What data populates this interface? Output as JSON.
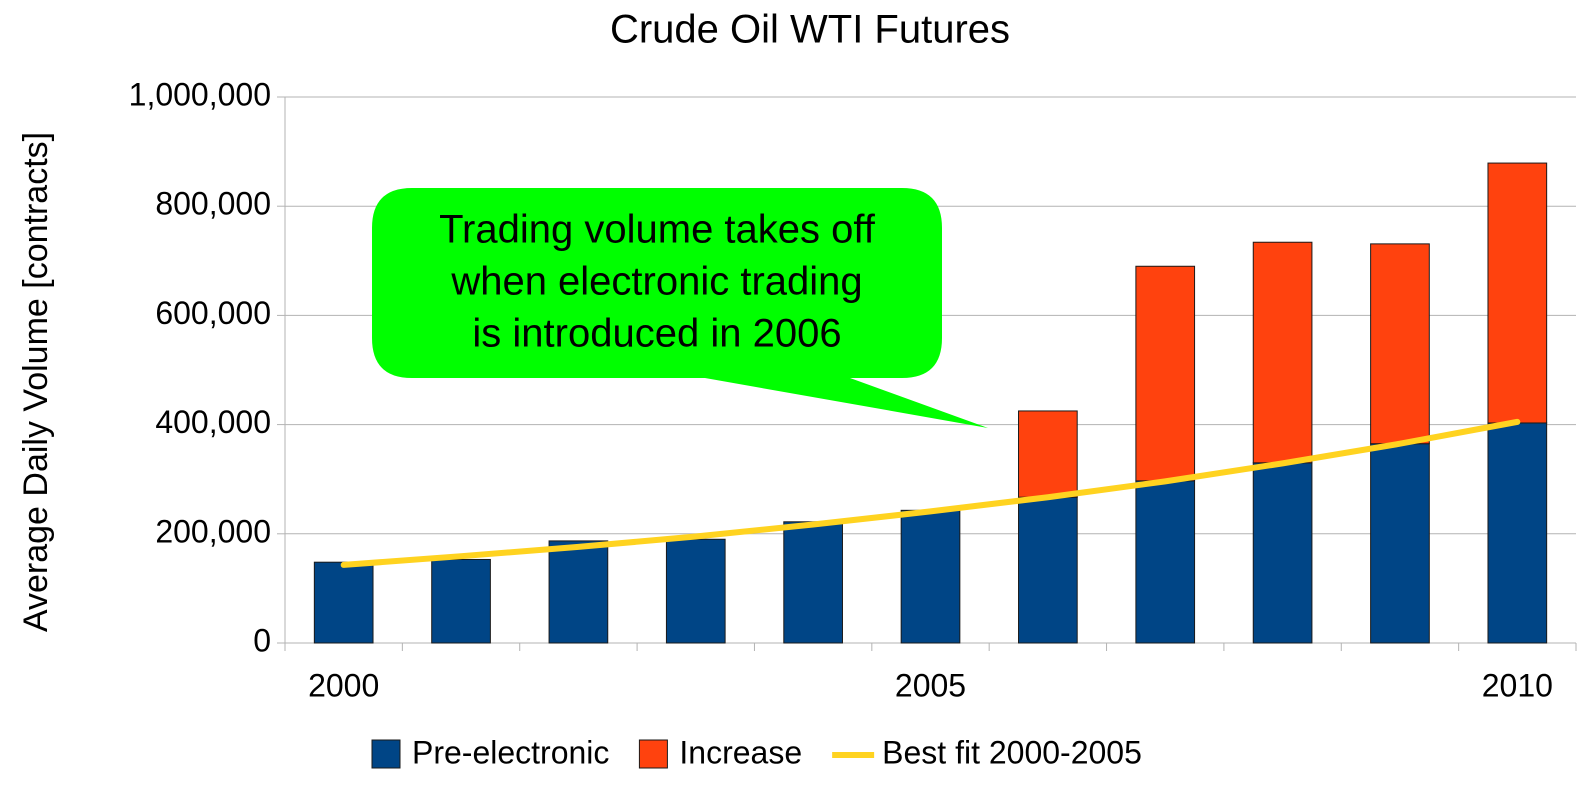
{
  "chart_data": {
    "type": "bar",
    "stacked": true,
    "title": "Crude Oil WTI Futures",
    "y_label": "Average Daily Volume [contracts]",
    "categories": [
      "2000",
      null,
      null,
      null,
      null,
      "2005",
      null,
      null,
      null,
      null,
      "2010"
    ],
    "series": [
      {
        "name": "Pre-electronic",
        "color": "#004586",
        "values": [
          148000,
          153000,
          187000,
          190000,
          222000,
          243000,
          267000,
          297000,
          330000,
          365000,
          403000
        ]
      },
      {
        "name": "Increase",
        "color": "#ff420e",
        "values": [
          null,
          null,
          null,
          null,
          null,
          null,
          158000,
          393000,
          404000,
          366000,
          476000
        ]
      },
      {
        "name": "Best fit 2000-2005",
        "color": "#ffd320",
        "type": "line",
        "values": [
          143000,
          159000,
          176000,
          195000,
          217000,
          241000,
          267000,
          296000,
          329000,
          365000,
          405000
        ]
      }
    ],
    "ylim": [
      0,
      1000000
    ],
    "yticks": [
      0,
      {
        "value": 200000,
        "label": "200,000"
      },
      {
        "value": 400000,
        "label": "400,000"
      },
      {
        "value": 600000,
        "label": "600,000"
      },
      {
        "value": 800000,
        "label": "800,000"
      },
      {
        "value": 1000000,
        "label": "1,000,000"
      }
    ],
    "grid": true,
    "legend": "bottom",
    "annotation": {
      "lines": [
        "Trading volume takes off",
        "when electronic trading",
        "is introduced in 2006"
      ],
      "color": "#00ff00"
    }
  }
}
